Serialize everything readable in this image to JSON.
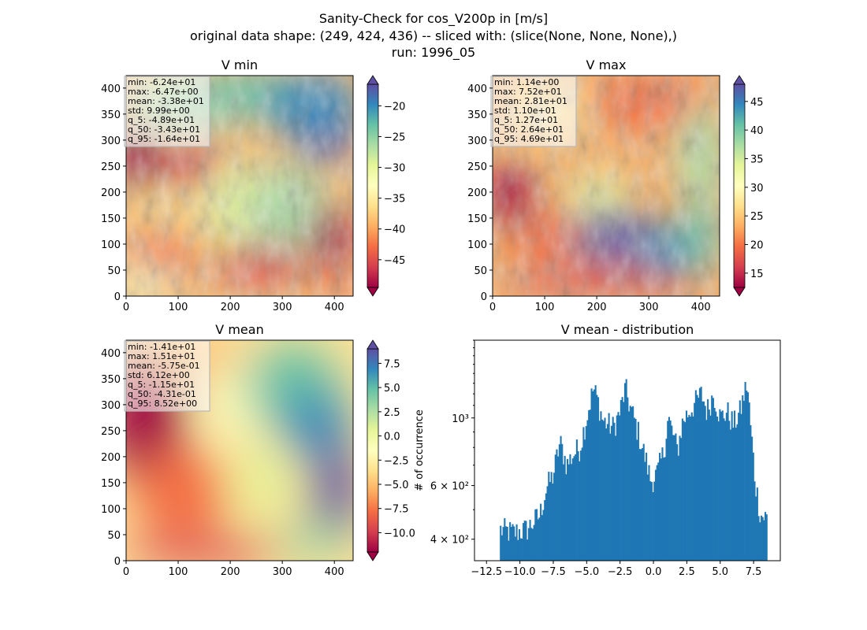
{
  "figure": {
    "title_lines": [
      "Sanity-Check for cos_V200p in [m/s]",
      "original data shape: (249, 424, 436) -- sliced with: (slice(None, None, None),)",
      "run: 1996_05"
    ]
  },
  "chart_data": [
    {
      "type": "heatmap",
      "title": "V min",
      "colormap": "Spectral",
      "xlim": [
        0,
        436
      ],
      "ylim": [
        0,
        424
      ],
      "xticks": [
        "0",
        "100",
        "200",
        "300",
        "400"
      ],
      "yticks": [
        "0",
        "50",
        "100",
        "150",
        "200",
        "250",
        "300",
        "350",
        "400"
      ],
      "colorbar": {
        "range": [
          -49.5,
          -16.5
        ],
        "ticks": [
          "−45",
          "−40",
          "−35",
          "−30",
          "−25",
          "−20"
        ],
        "tick_values": [
          -45,
          -40,
          -35,
          -30,
          -25,
          -20
        ],
        "extend": "both"
      },
      "stats": [
        "min: -6.24e+01",
        "max: -6.47e+00",
        "mean: -3.38e+01",
        "std: 9.99e+00",
        "q_5: -4.89e+01",
        "q_50: -3.43e+01",
        "q_95: -1.64e+01"
      ]
    },
    {
      "type": "heatmap",
      "title": "V max",
      "colormap": "Spectral",
      "xlim": [
        0,
        436
      ],
      "ylim": [
        0,
        424
      ],
      "xticks": [
        "0",
        "100",
        "200",
        "300",
        "400"
      ],
      "yticks": [
        "0",
        "50",
        "100",
        "150",
        "200",
        "250",
        "300",
        "350",
        "400"
      ],
      "colorbar": {
        "range": [
          12.5,
          48
        ],
        "ticks": [
          "15",
          "20",
          "25",
          "30",
          "35",
          "40",
          "45"
        ],
        "tick_values": [
          15,
          20,
          25,
          30,
          35,
          40,
          45
        ],
        "extend": "both"
      },
      "stats": [
        "min: 1.14e+00",
        "max: 7.52e+01",
        "mean: 2.81e+01",
        "std: 1.10e+01",
        "q_5: 1.27e+01",
        "q_50: 2.64e+01",
        "q_95: 4.69e+01"
      ]
    },
    {
      "type": "heatmap",
      "title": "V mean",
      "colormap": "Spectral",
      "xlim": [
        0,
        436
      ],
      "ylim": [
        0,
        424
      ],
      "xticks": [
        "0",
        "100",
        "200",
        "300",
        "400"
      ],
      "yticks": [
        "0",
        "50",
        "100",
        "150",
        "200",
        "250",
        "300",
        "350",
        "400"
      ],
      "colorbar": {
        "range": [
          -12,
          9
        ],
        "ticks": [
          "−10.0",
          "−7.5",
          "−5.0",
          "−2.5",
          "0.0",
          "2.5",
          "5.0",
          "7.5"
        ],
        "tick_values": [
          -10,
          -7.5,
          -5,
          -2.5,
          0,
          2.5,
          5,
          7.5
        ],
        "extend": "both"
      },
      "stats": [
        "min: -1.41e+01",
        "max: 1.51e+01",
        "mean: -5.75e-01",
        "std: 6.12e+00",
        "q_5: -1.15e+01",
        "q_50: -4.31e-01",
        "q_95: 8.52e+00"
      ]
    },
    {
      "type": "bar",
      "title": "V mean - distribution",
      "ylabel": "# of occurrence",
      "yscale": "log",
      "xlim": [
        -13.4,
        9.5
      ],
      "ylim": [
        340,
        1800
      ],
      "bar_color": "#1f77b4",
      "xticks": [
        "−12.5",
        "−10.0",
        "−7.5",
        "−5.0",
        "−2.5",
        "0.0",
        "2.5",
        "5.0",
        "7.5"
      ],
      "xtick_values": [
        -12.5,
        -10,
        -7.5,
        -5,
        -2.5,
        0,
        2.5,
        5,
        7.5
      ],
      "yticks": [
        "4 × 10²",
        "6 × 10²",
        "10³"
      ],
      "ytick_values": [
        400,
        600,
        1000
      ],
      "bin_range": [
        -11.5,
        8.52
      ],
      "profile_points": [
        [
          -11.5,
          430
        ],
        [
          -10.5,
          420
        ],
        [
          -9.5,
          430
        ],
        [
          -8.5,
          480
        ],
        [
          -8.0,
          590
        ],
        [
          -7.5,
          650
        ],
        [
          -7.0,
          830
        ],
        [
          -6.5,
          700
        ],
        [
          -6.0,
          760
        ],
        [
          -5.5,
          800
        ],
        [
          -5.0,
          1000
        ],
        [
          -4.5,
          1250
        ],
        [
          -4.2,
          1150
        ],
        [
          -3.8,
          980
        ],
        [
          -3.0,
          930
        ],
        [
          -2.5,
          1050
        ],
        [
          -2.1,
          1250
        ],
        [
          -1.8,
          1100
        ],
        [
          -1.0,
          850
        ],
        [
          -0.2,
          620
        ],
        [
          0.3,
          660
        ],
        [
          0.8,
          780
        ],
        [
          1.1,
          1000
        ],
        [
          1.4,
          900
        ],
        [
          1.8,
          780
        ],
        [
          2.2,
          980
        ],
        [
          3.0,
          1100
        ],
        [
          3.6,
          1200
        ],
        [
          4.0,
          1050
        ],
        [
          4.5,
          1200
        ],
        [
          5.0,
          1000
        ],
        [
          5.5,
          1050
        ],
        [
          6.0,
          950
        ],
        [
          6.5,
          1050
        ],
        [
          7.0,
          1300
        ],
        [
          7.3,
          900
        ],
        [
          7.6,
          620
        ],
        [
          8.0,
          480
        ],
        [
          8.5,
          470
        ]
      ]
    }
  ]
}
